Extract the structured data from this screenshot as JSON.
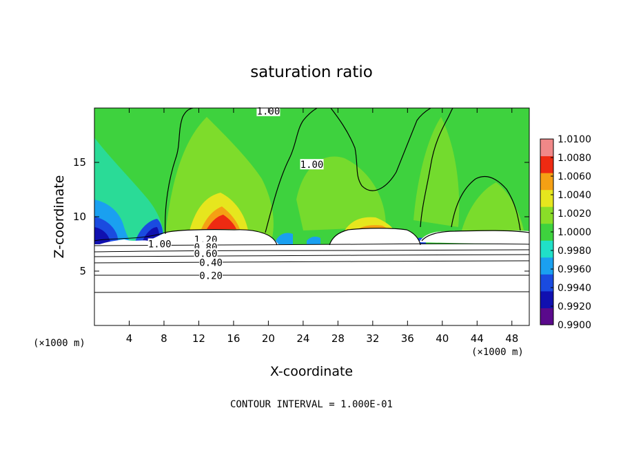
{
  "chart_data": {
    "type": "heatmap",
    "title": "saturation ratio",
    "xlabel": "X-coordinate",
    "ylabel": "Z-coordinate",
    "x_unit": "(×1000 m)",
    "x_unit_right": "(×1000 m)",
    "xlim": [
      0,
      50
    ],
    "ylim": [
      0,
      20
    ],
    "x_ticks": [
      4,
      8,
      12,
      16,
      20,
      24,
      28,
      32,
      36,
      40,
      44,
      48
    ],
    "x_tick_labels": [
      "4",
      "8",
      "12",
      "16",
      "20",
      "24",
      "28",
      "32",
      "36",
      "40",
      "44",
      "48"
    ],
    "y_ticks": [
      5,
      10,
      15
    ],
    "y_tick_labels": [
      "5",
      "10",
      "15"
    ],
    "colorbar": {
      "min": 0.99,
      "max": 1.01,
      "tick_labels": [
        "1.0100",
        "1.0080",
        "1.0060",
        "1.0040",
        "1.0020",
        "1.0000",
        "0.9980",
        "0.9960",
        "0.9940",
        "0.9920",
        "0.9900"
      ],
      "colors": [
        "#5a0a8c",
        "#1010b0",
        "#1a4be0",
        "#1aa0f0",
        "#20e0c8",
        "#3ed23e",
        "#8ade28",
        "#e6e61e",
        "#f5a014",
        "#ee2a12",
        "#f08888"
      ]
    },
    "contour_labels": [
      {
        "x": 20,
        "z": 19.7,
        "text": "1.00"
      },
      {
        "x": 25,
        "z": 14.8,
        "text": "1.00"
      },
      {
        "x": 7.5,
        "z": 7.5,
        "text": "1.00"
      },
      {
        "x": 12.8,
        "z": 7.9,
        "text": "1.20"
      },
      {
        "x": 12.8,
        "z": 7.2,
        "text": "0.80"
      },
      {
        "x": 12.8,
        "z": 6.6,
        "text": "0.60"
      },
      {
        "x": 13.4,
        "z": 5.8,
        "text": "0.40"
      },
      {
        "x": 13.4,
        "z": 4.6,
        "text": "0.20"
      }
    ],
    "annotation": "CONTOUR INTERVAL = 1.000E-01"
  }
}
